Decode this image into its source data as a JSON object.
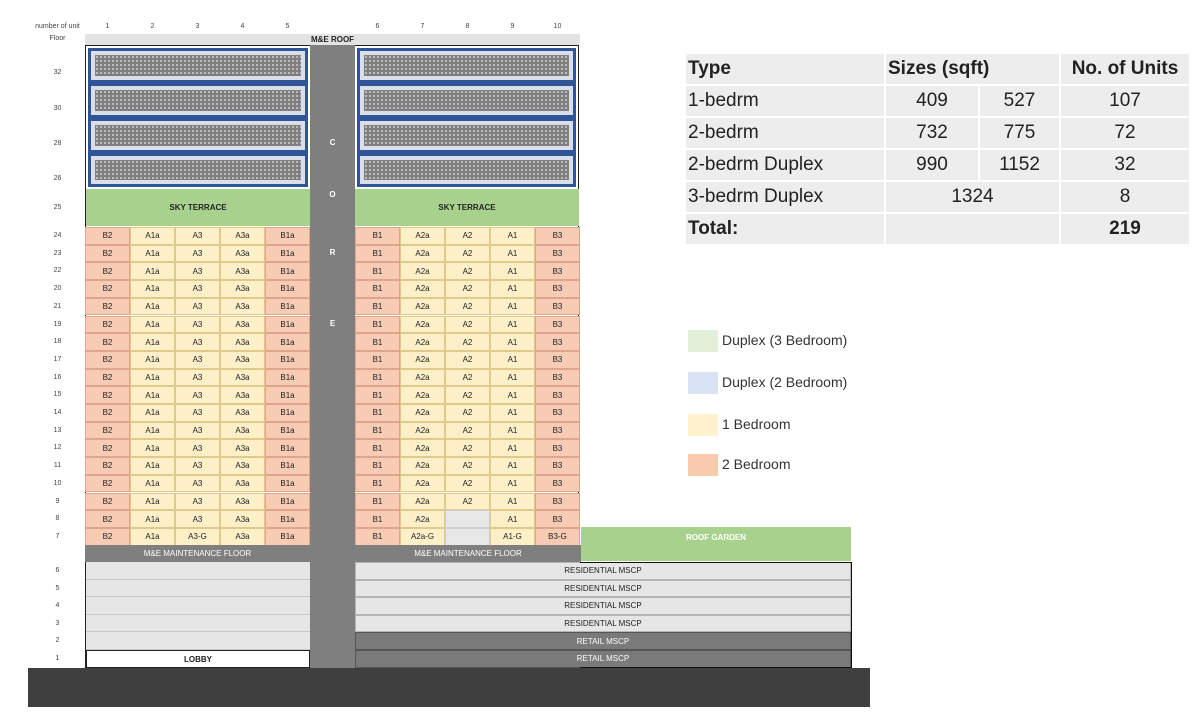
{
  "header": {
    "number_of_unit_label": "number of unit",
    "floor_label": "Floor",
    "unit_numbers": [
      "1",
      "2",
      "3",
      "4",
      "5",
      "6",
      "7",
      "8",
      "9",
      "10"
    ]
  },
  "building": {
    "roof_label": "M&E ROOF",
    "core_letters": [
      "C",
      "O",
      "R",
      "E"
    ],
    "sky_terrace_label": "SKY TERRACE",
    "duplex_floor_labels": [
      "32",
      "30",
      "28",
      "26"
    ],
    "sky_floor_label": "25",
    "residential_floors": [
      {
        "floor": "24",
        "left": [
          "B2",
          "A1a",
          "A3",
          "A3a",
          "B1a"
        ],
        "right": [
          "B1",
          "A2a",
          "A2",
          "A1",
          "B3"
        ]
      },
      {
        "floor": "23",
        "left": [
          "B2",
          "A1a",
          "A3",
          "A3a",
          "B1a"
        ],
        "right": [
          "B1",
          "A2a",
          "A2",
          "A1",
          "B3"
        ]
      },
      {
        "floor": "22",
        "left": [
          "B2",
          "A1a",
          "A3",
          "A3a",
          "B1a"
        ],
        "right": [
          "B1",
          "A2a",
          "A2",
          "A1",
          "B3"
        ]
      },
      {
        "floor": "20",
        "left": [
          "B2",
          "A1a",
          "A3",
          "A3a",
          "B1a"
        ],
        "right": [
          "B1",
          "A2a",
          "A2",
          "A1",
          "B3"
        ]
      },
      {
        "floor": "21",
        "left": [
          "B2",
          "A1a",
          "A3",
          "A3a",
          "B1a"
        ],
        "right": [
          "B1",
          "A2a",
          "A2",
          "A1",
          "B3"
        ]
      },
      {
        "floor": "19",
        "left": [
          "B2",
          "A1a",
          "A3",
          "A3a",
          "B1a"
        ],
        "right": [
          "B1",
          "A2a",
          "A2",
          "A1",
          "B3"
        ]
      },
      {
        "floor": "18",
        "left": [
          "B2",
          "A1a",
          "A3",
          "A3a",
          "B1a"
        ],
        "right": [
          "B1",
          "A2a",
          "A2",
          "A1",
          "B3"
        ]
      },
      {
        "floor": "17",
        "left": [
          "B2",
          "A1a",
          "A3",
          "A3a",
          "B1a"
        ],
        "right": [
          "B1",
          "A2a",
          "A2",
          "A1",
          "B3"
        ]
      },
      {
        "floor": "16",
        "left": [
          "B2",
          "A1a",
          "A3",
          "A3a",
          "B1a"
        ],
        "right": [
          "B1",
          "A2a",
          "A2",
          "A1",
          "B3"
        ]
      },
      {
        "floor": "15",
        "left": [
          "B2",
          "A1a",
          "A3",
          "A3a",
          "B1a"
        ],
        "right": [
          "B1",
          "A2a",
          "A2",
          "A1",
          "B3"
        ]
      },
      {
        "floor": "14",
        "left": [
          "B2",
          "A1a",
          "A3",
          "A3a",
          "B1a"
        ],
        "right": [
          "B1",
          "A2a",
          "A2",
          "A1",
          "B3"
        ]
      },
      {
        "floor": "13",
        "left": [
          "B2",
          "A1a",
          "A3",
          "A3a",
          "B1a"
        ],
        "right": [
          "B1",
          "A2a",
          "A2",
          "A1",
          "B3"
        ]
      },
      {
        "floor": "12",
        "left": [
          "B2",
          "A1a",
          "A3",
          "A3a",
          "B1a"
        ],
        "right": [
          "B1",
          "A2a",
          "A2",
          "A1",
          "B3"
        ]
      },
      {
        "floor": "11",
        "left": [
          "B2",
          "A1a",
          "A3",
          "A3a",
          "B1a"
        ],
        "right": [
          "B1",
          "A2a",
          "A2",
          "A1",
          "B3"
        ]
      },
      {
        "floor": "10",
        "left": [
          "B2",
          "A1a",
          "A3",
          "A3a",
          "B1a"
        ],
        "right": [
          "B1",
          "A2a",
          "A2",
          "A1",
          "B3"
        ]
      },
      {
        "floor": "9",
        "left": [
          "B2",
          "A1a",
          "A3",
          "A3a",
          "B1a"
        ],
        "right": [
          "B1",
          "A2a",
          "A2",
          "A1",
          "B3"
        ]
      },
      {
        "floor": "8",
        "left": [
          "B2",
          "A1a",
          "A3",
          "A3a",
          "B1a"
        ],
        "right": [
          "B1",
          "A2a",
          "",
          "A1",
          "B3"
        ]
      },
      {
        "floor": "7",
        "left": [
          "B2",
          "A1a",
          "A3-G",
          "A3a",
          "B1a"
        ],
        "right": [
          "B1",
          "A2a-G",
          "",
          "A1-G",
          "B3-G"
        ]
      }
    ],
    "maintenance_label": "M&E MAINTENANCE FLOOR",
    "roof_garden_label": "ROOF GARDEN",
    "podium_floors": [
      {
        "floor": "6",
        "label": "RESIDENTIAL MSCP",
        "kind": "light"
      },
      {
        "floor": "5",
        "label": "RESIDENTIAL MSCP",
        "kind": "light"
      },
      {
        "floor": "4",
        "label": "RESIDENTIAL MSCP",
        "kind": "light"
      },
      {
        "floor": "3",
        "label": "RESIDENTIAL MSCP",
        "kind": "light"
      },
      {
        "floor": "2",
        "label": "RETAIL MSCP",
        "kind": "dark"
      },
      {
        "floor": "1",
        "label": "RETAIL MSCP",
        "kind": "dark"
      }
    ],
    "lobby_label": "LOBBY"
  },
  "unit_table": {
    "headers": {
      "type": "Type",
      "sizes": "Sizes (sqft)",
      "units": "No. of Units"
    },
    "rows": [
      {
        "type": "1-bedrm",
        "size1": "409",
        "size2": "527",
        "units": "107"
      },
      {
        "type": "2-bedrm",
        "size1": "732",
        "size2": "775",
        "units": "72"
      },
      {
        "type": "2-bedrm Duplex",
        "size1": "990",
        "size2": "1152",
        "units": "32"
      },
      {
        "type": "3-bedrm Duplex",
        "size_merged": "1324",
        "units": "8"
      }
    ],
    "total_label": "Total:",
    "total_units": "219"
  },
  "legend": [
    {
      "label": "Duplex (3 Bedroom)",
      "color": "#e2f0d9"
    },
    {
      "label": "Duplex (2 Bedroom)",
      "color": "#dae3f3"
    },
    {
      "label": "1 Bedroom",
      "color": "#fff2cc"
    },
    {
      "label": "2 Bedroom",
      "color": "#f8cbad"
    }
  ],
  "colors": {
    "core": "#7f7f7f",
    "sky_terrace": "#a9d18e",
    "duplex_border": "#2f5597",
    "ground": "#3f3f3f"
  }
}
